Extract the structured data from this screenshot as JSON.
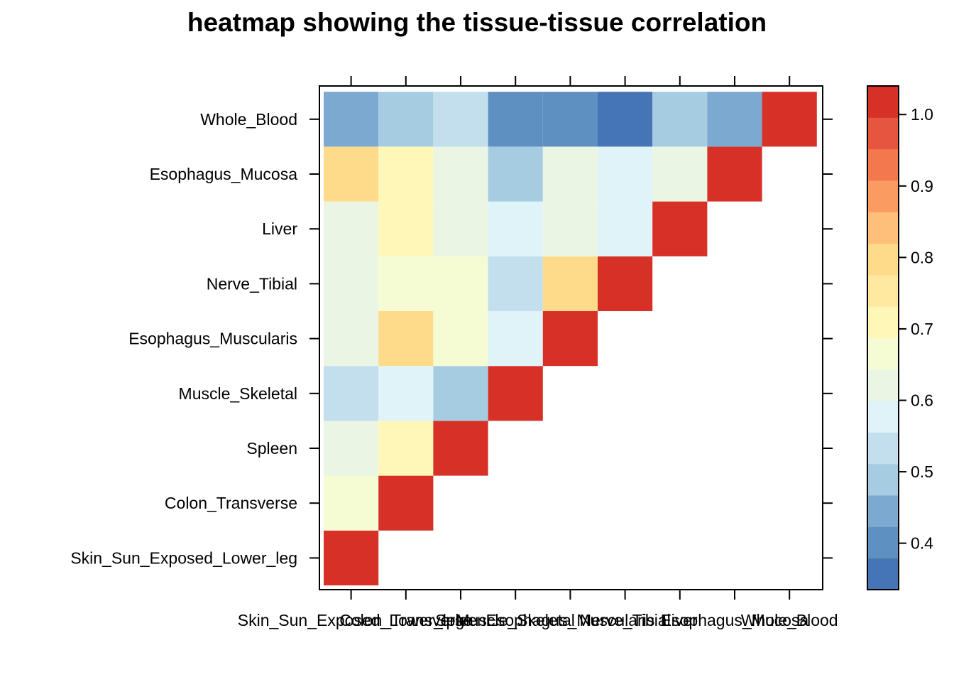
{
  "chart_data": {
    "type": "heatmap",
    "title": "heatmap showing the tissue-tissue correlation",
    "xlabel": "",
    "ylabel": "",
    "tissues": [
      "Skin_Sun_Exposed_Lower_leg",
      "Colon_Transverse",
      "Spleen",
      "Muscle_Skeletal",
      "Esophagus_Muscularis",
      "Nerve_Tibial",
      "Liver",
      "Esophagus_Mucosa",
      "Whole_Blood"
    ],
    "matrix_lower_triangle": [
      [
        1.0
      ],
      [
        0.68,
        1.0
      ],
      [
        0.63,
        0.73,
        1.0
      ],
      [
        0.53,
        0.58,
        0.48,
        1.0
      ],
      [
        0.63,
        0.78,
        0.68,
        0.58,
        1.0
      ],
      [
        0.63,
        0.68,
        0.68,
        0.53,
        0.78,
        1.0
      ],
      [
        0.63,
        0.73,
        0.63,
        0.58,
        0.63,
        0.58,
        1.0
      ],
      [
        0.78,
        0.73,
        0.63,
        0.48,
        0.63,
        0.58,
        0.63,
        1.0
      ],
      [
        0.43,
        0.48,
        0.53,
        0.38,
        0.38,
        0.33,
        0.48,
        0.43,
        1.0
      ]
    ],
    "colorkey": {
      "range": [
        0.335,
        1.04
      ],
      "ticks": [
        0.4,
        0.5,
        0.6,
        0.7,
        0.8,
        0.9,
        1.0
      ],
      "tick_labels": [
        "0.4",
        "0.5",
        "0.6",
        "0.7",
        "0.8",
        "0.9",
        "1.0"
      ],
      "colors": [
        "#4575B4",
        "#5F90C2",
        "#7BA9D0",
        "#A6CCE2",
        "#C3DEEC",
        "#E0F3F8",
        "#EAF5E3",
        "#F5FBD2",
        "#FFF7B7",
        "#FFE8A0",
        "#FEDA8B",
        "#FDBF7A",
        "#FA9C62",
        "#F4784E",
        "#E6553F",
        "#D73027"
      ]
    }
  }
}
